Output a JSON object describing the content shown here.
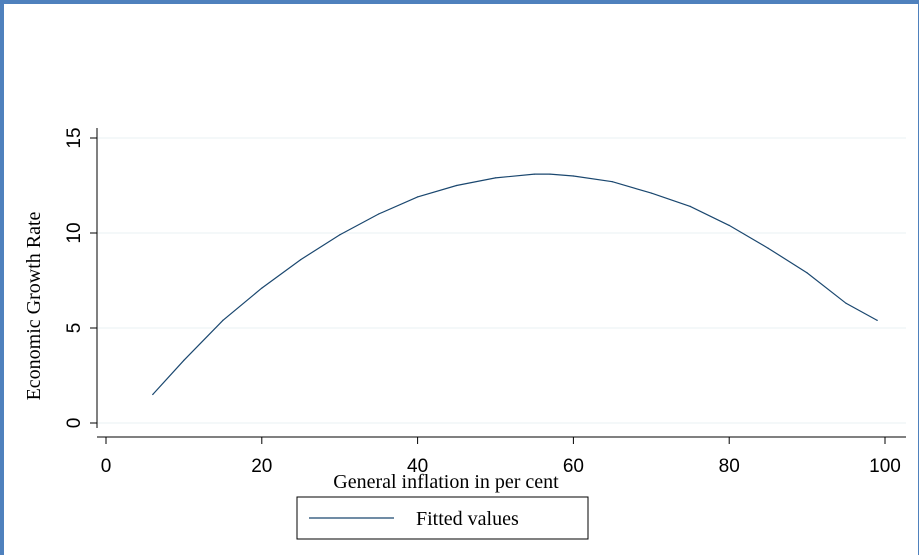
{
  "chart_data": {
    "type": "line",
    "xlabel": "General inflation in per cent",
    "ylabel": "Economic Growth Rate",
    "xlim": [
      0,
      100
    ],
    "ylim": [
      0,
      15
    ],
    "xticks": [
      0,
      20,
      40,
      60,
      80,
      100
    ],
    "yticks": [
      0,
      5,
      10,
      15
    ],
    "grid": "horizontal",
    "legend_position": "bottom",
    "series": [
      {
        "name": "Fitted values",
        "color": "#1a476f",
        "x": [
          6,
          10,
          15,
          20,
          25,
          30,
          35,
          40,
          45,
          50,
          55,
          57,
          60,
          65,
          70,
          75,
          80,
          85,
          90,
          95,
          99
        ],
        "y": [
          1.5,
          3.3,
          5.4,
          7.1,
          8.6,
          9.9,
          11.0,
          11.9,
          12.5,
          12.9,
          13.1,
          13.1,
          13.0,
          12.7,
          12.1,
          11.4,
          10.4,
          9.2,
          7.9,
          6.3,
          5.4
        ]
      }
    ]
  }
}
